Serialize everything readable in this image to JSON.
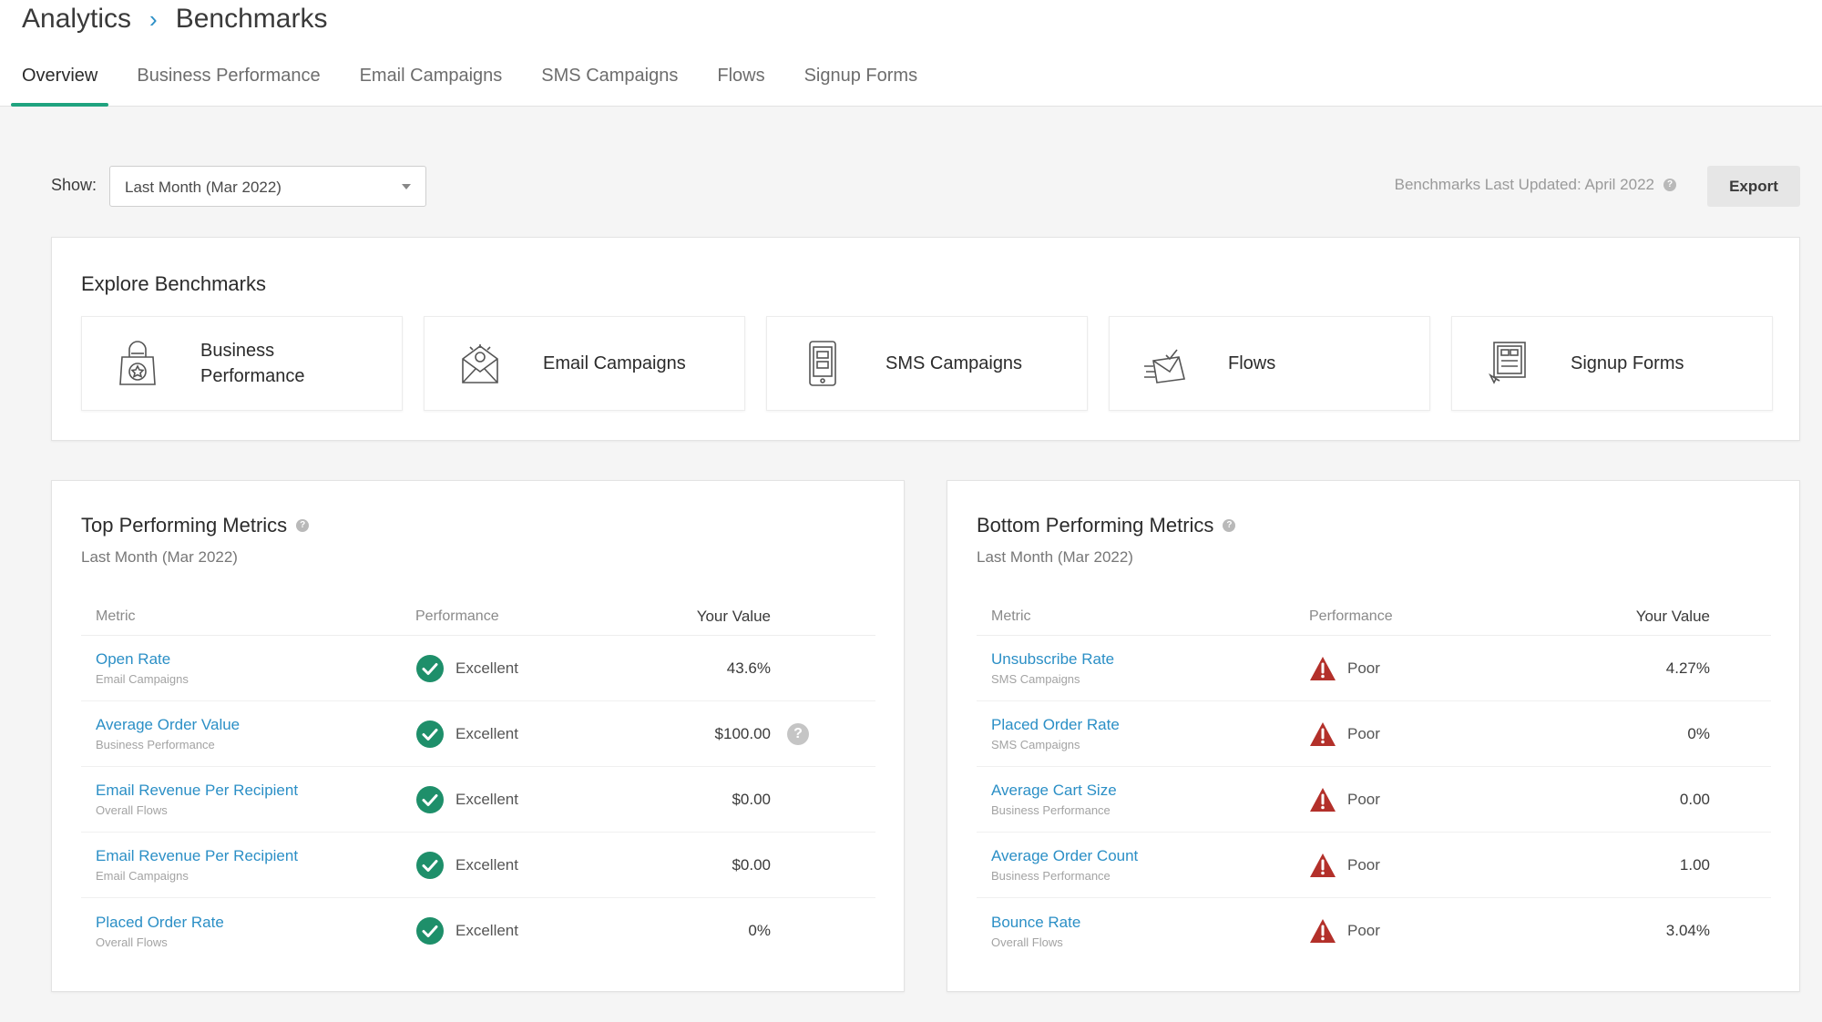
{
  "breadcrumb": {
    "parent": "Analytics",
    "current": "Benchmarks"
  },
  "tabs": [
    {
      "label": "Overview"
    },
    {
      "label": "Business Performance"
    },
    {
      "label": "Email Campaigns"
    },
    {
      "label": "SMS Campaigns"
    },
    {
      "label": "Flows"
    },
    {
      "label": "Signup Forms"
    }
  ],
  "filter": {
    "label": "Show:",
    "selected": "Last Month  (Mar 2022)"
  },
  "updated_text": "Benchmarks Last Updated: April 2022",
  "export_label": "Export",
  "explore": {
    "title": "Explore Benchmarks",
    "tiles": [
      {
        "label": "Business Performance",
        "icon": "shopping-bag-icon"
      },
      {
        "label": "Email Campaigns",
        "icon": "email-icon"
      },
      {
        "label": "SMS Campaigns",
        "icon": "phone-icon"
      },
      {
        "label": "Flows",
        "icon": "flows-icon"
      },
      {
        "label": "Signup Forms",
        "icon": "signup-form-icon"
      }
    ]
  },
  "top": {
    "title": "Top Performing Metrics",
    "subtitle": "Last Month (Mar 2022)",
    "headers": {
      "metric": "Metric",
      "performance": "Performance",
      "value": "Your Value"
    },
    "rows": [
      {
        "metric": "Open Rate",
        "category": "Email Campaigns",
        "performance": "Excellent",
        "value": "43.6%"
      },
      {
        "metric": "Average Order Value",
        "category": "Business Performance",
        "performance": "Excellent",
        "value": "$100.00",
        "help": "?"
      },
      {
        "metric": "Email Revenue Per Recipient",
        "category": "Overall Flows",
        "performance": "Excellent",
        "value": "$0.00"
      },
      {
        "metric": "Email Revenue Per Recipient",
        "category": "Email Campaigns",
        "performance": "Excellent",
        "value": "$0.00"
      },
      {
        "metric": "Placed Order Rate",
        "category": "Overall Flows",
        "performance": "Excellent",
        "value": "0%"
      }
    ]
  },
  "bottom": {
    "title": "Bottom Performing Metrics",
    "subtitle": "Last Month (Mar 2022)",
    "headers": {
      "metric": "Metric",
      "performance": "Performance",
      "value": "Your Value"
    },
    "rows": [
      {
        "metric": "Unsubscribe Rate",
        "category": "SMS Campaigns",
        "performance": "Poor",
        "value": "4.27%"
      },
      {
        "metric": "Placed Order Rate",
        "category": "SMS Campaigns",
        "performance": "Poor",
        "value": "0%"
      },
      {
        "metric": "Average Cart Size",
        "category": "Business Performance",
        "performance": "Poor",
        "value": "0.00"
      },
      {
        "metric": "Average Order Count",
        "category": "Business Performance",
        "performance": "Poor",
        "value": "1.00"
      },
      {
        "metric": "Bounce Rate",
        "category": "Overall Flows",
        "performance": "Poor",
        "value": "3.04%"
      }
    ]
  },
  "colors": {
    "accent": "#1fa37f",
    "link": "#2b8fc6",
    "excellent": "#1e8f6a",
    "poor": "#c0392b"
  }
}
